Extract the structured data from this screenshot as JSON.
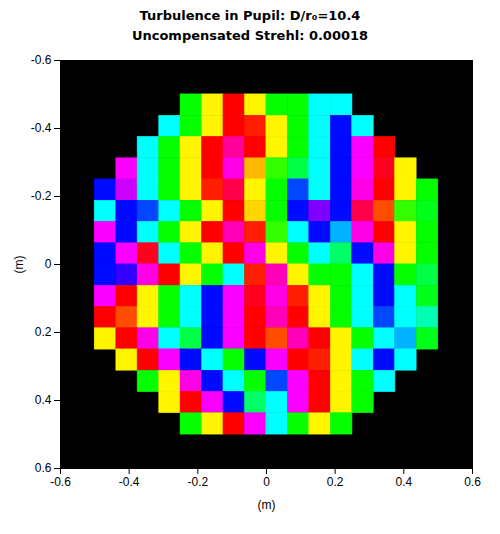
{
  "chart_data": {
    "type": "heatmap",
    "title": "Turbulence in Pupil: D/r₀=10.4",
    "subtitle": "Uncompensated Strehl: 0.00018",
    "xlabel": "(m)",
    "ylabel": "(m)",
    "xlim": [
      -0.6,
      0.6
    ],
    "ylim": [
      0.6,
      -0.6
    ],
    "xticks": [
      -0.6,
      -0.4,
      -0.2,
      0,
      0.2,
      0.4,
      0.6
    ],
    "yticks": [
      -0.6,
      -0.4,
      -0.2,
      0,
      0.2,
      0.4,
      0.6
    ],
    "color": "hsv",
    "clim": [
      0,
      1
    ],
    "x": [
      -0.469,
      -0.406,
      -0.344,
      -0.281,
      -0.219,
      -0.156,
      -0.094,
      -0.031,
      0.031,
      0.094,
      0.156,
      0.219,
      0.281,
      0.344,
      0.406,
      0.469
    ],
    "y": [
      -0.469,
      -0.406,
      -0.344,
      -0.281,
      -0.219,
      -0.156,
      -0.094,
      -0.031,
      0.031,
      0.094,
      0.156,
      0.219,
      0.281,
      0.344,
      0.406,
      0.469
    ],
    "cells": [
      [
        null,
        null,
        null,
        null,
        0.33,
        0.16,
        0,
        0.16,
        0.33,
        0.33,
        0.5,
        0.5,
        null,
        null,
        null,
        null
      ],
      [
        null,
        null,
        null,
        0.5,
        0.33,
        0.16,
        0,
        0.02,
        0.16,
        0.33,
        0.5,
        0.66,
        0.5,
        null,
        null,
        null
      ],
      [
        null,
        null,
        0.5,
        0.33,
        0.16,
        0,
        0.9,
        0,
        0.16,
        0.33,
        0.5,
        0.66,
        0.83,
        0,
        null,
        null
      ],
      [
        null,
        0.83,
        0.5,
        0.33,
        0.16,
        0,
        0.85,
        0.12,
        0.3,
        0.38,
        0.5,
        0.66,
        0.83,
        0.98,
        0.16,
        null
      ],
      [
        0.66,
        0.8,
        0.5,
        0.33,
        0.16,
        0.02,
        0.95,
        0.16,
        0.33,
        0.62,
        0.5,
        0.66,
        0.85,
        0,
        0.16,
        0.33
      ],
      [
        0.5,
        0.66,
        0.62,
        0.5,
        0.33,
        0.16,
        0,
        0.14,
        0.33,
        0.66,
        0.75,
        0.66,
        0.95,
        0.05,
        0.3,
        0.35
      ],
      [
        0.83,
        0.66,
        0.5,
        0.33,
        0.16,
        0,
        0.88,
        0.02,
        0.3,
        0.5,
        0.66,
        0.55,
        0.85,
        0,
        0.16,
        0.33
      ],
      [
        0.66,
        0.83,
        0.98,
        0.5,
        0.33,
        0.16,
        0,
        0.85,
        0.16,
        0.33,
        0.5,
        0.4,
        0.66,
        0.85,
        0.16,
        0.33
      ],
      [
        0.66,
        0.7,
        0.85,
        0,
        0.16,
        0.33,
        0.5,
        0.02,
        0.88,
        0.16,
        0.33,
        0.33,
        0.5,
        0.66,
        0.33,
        0.38
      ],
      [
        0.83,
        0,
        0.16,
        0.33,
        0.5,
        0.66,
        0.83,
        0.98,
        0.85,
        0.02,
        0.16,
        0.33,
        0.5,
        0.66,
        0.5,
        0.35
      ],
      [
        0,
        0.05,
        0.16,
        0.33,
        0.5,
        0.66,
        0.83,
        0,
        0.88,
        0,
        0.16,
        0.33,
        0.5,
        0.62,
        0.5,
        0.45
      ],
      [
        0.16,
        0,
        0.85,
        0.5,
        0.38,
        0.66,
        0.83,
        0,
        0.05,
        0.88,
        0,
        0.16,
        0.33,
        0.5,
        0.55,
        0.35
      ],
      [
        null,
        0.16,
        0,
        0.83,
        0.66,
        0.5,
        0.33,
        0.66,
        0.83,
        0,
        0.02,
        0.16,
        0.5,
        0.66,
        0.5,
        null
      ],
      [
        null,
        null,
        0.33,
        0.16,
        0.85,
        0.66,
        0.5,
        0.33,
        0.62,
        0.83,
        0,
        0.16,
        0.33,
        0.5,
        null,
        null
      ],
      [
        null,
        null,
        null,
        0.16,
        0,
        0.83,
        0.66,
        0.4,
        0.5,
        0.83,
        0,
        0.16,
        0.33,
        null,
        null,
        null
      ],
      [
        null,
        null,
        null,
        null,
        0.33,
        0.16,
        0,
        0.83,
        0.5,
        0.33,
        0.16,
        0.33,
        null,
        null,
        null,
        null
      ]
    ]
  }
}
